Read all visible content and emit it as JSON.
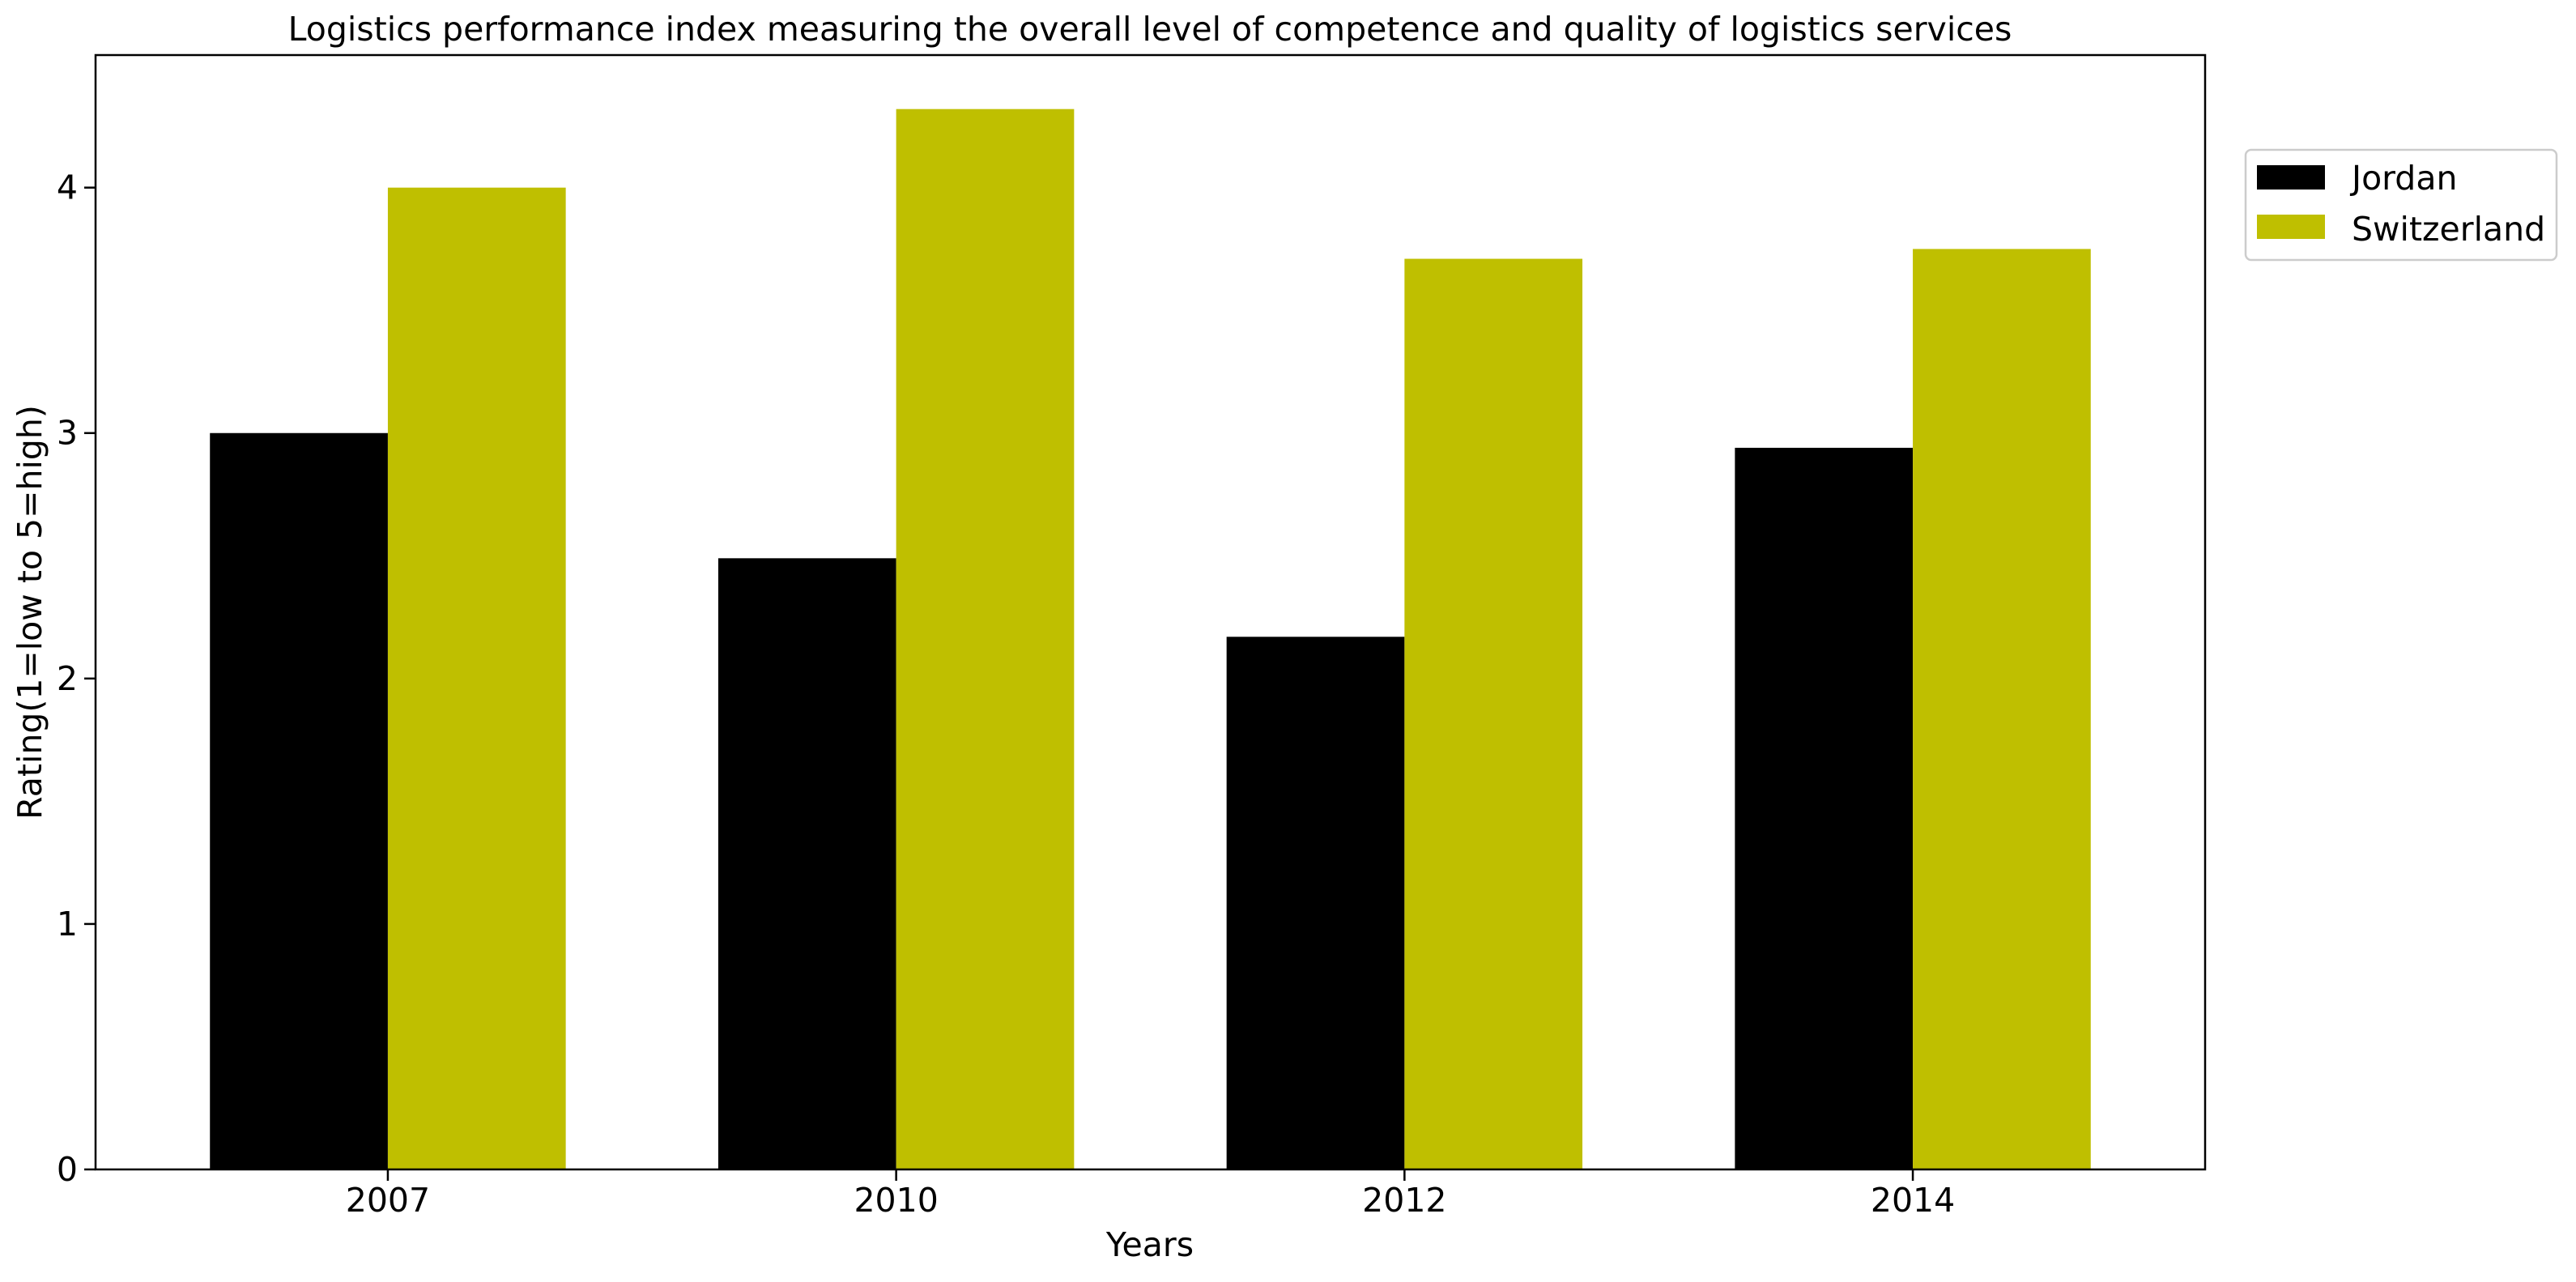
{
  "chart_data": {
    "type": "bar",
    "title": "Logistics performance index measuring the overall level of competence and quality of logistics services",
    "xlabel": "Years",
    "ylabel": "Rating(1=low to 5=high)",
    "categories": [
      "2007",
      "2010",
      "2012",
      "2014"
    ],
    "series": [
      {
        "name": "Jordan",
        "color": "#000000",
        "values": [
          3.0,
          2.49,
          2.17,
          2.94
        ]
      },
      {
        "name": "Switzerland",
        "color": "#bfbf00",
        "values": [
          4.0,
          4.32,
          3.71,
          3.75
        ]
      }
    ],
    "ylim": [
      0,
      4.54
    ],
    "yticks": [
      0,
      1,
      2,
      3,
      4
    ],
    "grid": false,
    "legend_position": "outside-top-right"
  }
}
